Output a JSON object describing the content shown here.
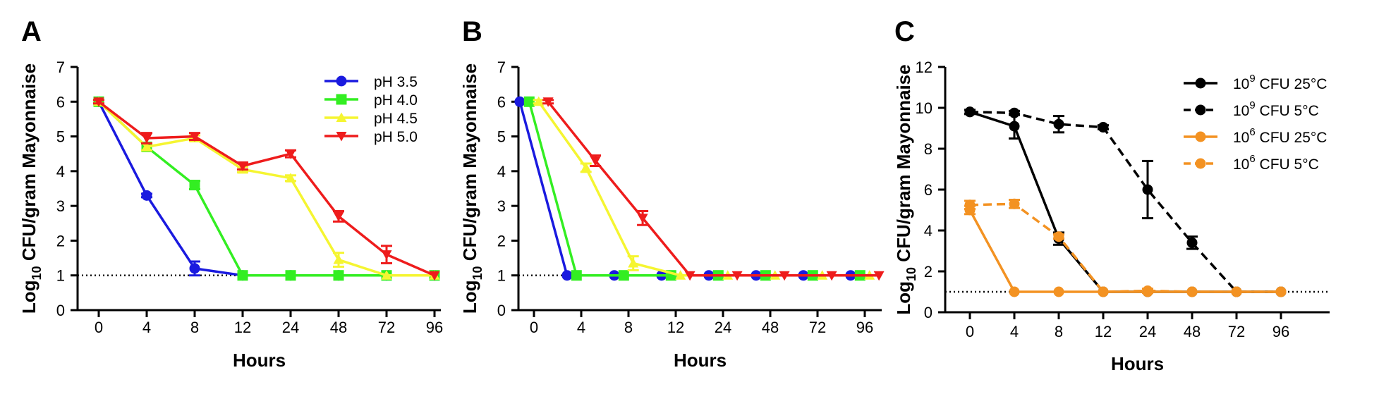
{
  "chart_data": [
    {
      "panel": "A",
      "type": "line",
      "title": "",
      "xlabel": "Hours",
      "ylabel_main": "CFU/gram Mayonnaise",
      "ylabel_prefix": "Log",
      "ylabel_sub": "10",
      "x": [
        "0",
        "4",
        "8",
        "12",
        "24",
        "48",
        "72",
        "96"
      ],
      "ylim": [
        0,
        7
      ],
      "yticks": [
        "0",
        "1",
        "2",
        "3",
        "4",
        "5",
        "6",
        "7"
      ],
      "detection_limit": 1,
      "legend_position": "top-right",
      "series": [
        {
          "name": "pH 3.5",
          "color": "#1a1adf",
          "marker": "circle",
          "dashed": false,
          "values": [
            6.0,
            3.3,
            1.2,
            1.0,
            1.0,
            1.0,
            1.0,
            1.0
          ],
          "errors": [
            0.05,
            0.05,
            0.2,
            0,
            0,
            0,
            0,
            0
          ]
        },
        {
          "name": "pH 4.0",
          "color": "#33ee22",
          "marker": "square",
          "dashed": false,
          "values": [
            6.0,
            4.7,
            3.6,
            1.0,
            1.0,
            1.0,
            1.0,
            1.0
          ],
          "errors": [
            0.05,
            0.1,
            0.12,
            0,
            0,
            0,
            0,
            0
          ]
        },
        {
          "name": "pH 4.5",
          "color": "#f5f531",
          "marker": "triangle",
          "dashed": false,
          "values": [
            6.0,
            4.7,
            4.95,
            4.05,
            3.8,
            1.45,
            1.0,
            1.0
          ],
          "errors": [
            0.05,
            0.1,
            0.08,
            0.08,
            0.08,
            0.2,
            0,
            0
          ]
        },
        {
          "name": "pH 5.0",
          "color": "#ee1c1c",
          "marker": "triangle-down",
          "dashed": false,
          "values": [
            6.0,
            4.95,
            5.0,
            4.15,
            4.5,
            2.7,
            1.6,
            1.0
          ],
          "errors": [
            0.05,
            0.15,
            0.1,
            0.1,
            0.1,
            0.15,
            0.25,
            0
          ]
        }
      ]
    },
    {
      "panel": "B",
      "type": "line",
      "title": "",
      "xlabel": "Hours",
      "ylabel_main": "CFU/gram Mayonnaise",
      "ylabel_prefix": "Log",
      "ylabel_sub": "10",
      "x": [
        "0",
        "4",
        "8",
        "12",
        "24",
        "48",
        "72",
        "96"
      ],
      "ylim": [
        0,
        7
      ],
      "yticks": [
        "0",
        "1",
        "2",
        "3",
        "4",
        "5",
        "6",
        "7"
      ],
      "detection_limit": 1,
      "series": [
        {
          "name": "pH 3.5",
          "color": "#1a1adf",
          "marker": "circle",
          "dashed": false,
          "offset": -0.3,
          "values": [
            6.0,
            1.0,
            1.0,
            1.0,
            1.0,
            1.0,
            1.0,
            1.0
          ],
          "errors": [
            0,
            0,
            0,
            0,
            0,
            0,
            0,
            0
          ]
        },
        {
          "name": "pH 4.0",
          "color": "#33ee22",
          "marker": "square",
          "dashed": false,
          "offset": -0.1,
          "values": [
            6.0,
            1.0,
            1.0,
            1.0,
            1.0,
            1.0,
            1.0,
            1.0
          ],
          "errors": [
            0,
            0,
            0,
            0,
            0,
            0,
            0,
            0
          ]
        },
        {
          "name": "pH 4.5",
          "color": "#f5f531",
          "marker": "triangle",
          "dashed": false,
          "offset": 0.1,
          "values": [
            6.0,
            4.1,
            1.35,
            1.0,
            1.0,
            1.0,
            1.0,
            1.0
          ],
          "errors": [
            0.05,
            0.12,
            0.2,
            0,
            0,
            0,
            0,
            0
          ]
        },
        {
          "name": "pH 5.0",
          "color": "#ee1c1c",
          "marker": "triangle-down",
          "dashed": false,
          "offset": 0.3,
          "values": [
            6.0,
            4.3,
            2.65,
            1.0,
            1.0,
            1.0,
            1.0,
            1.0
          ],
          "errors": [
            0.05,
            0.15,
            0.2,
            0,
            0,
            0,
            0,
            0
          ]
        }
      ]
    },
    {
      "panel": "C",
      "type": "line",
      "title": "",
      "xlabel": "Hours",
      "ylabel_main": "CFU/gram Mayonnaise",
      "ylabel_prefix": "Log",
      "ylabel_sub": "10",
      "x": [
        "0",
        "4",
        "8",
        "12",
        "24",
        "48",
        "72",
        "96"
      ],
      "ylim": [
        0,
        12
      ],
      "yticks": [
        "0",
        "2",
        "4",
        "6",
        "8",
        "10",
        "12"
      ],
      "detection_limit": 1,
      "legend_position": "top-right",
      "series": [
        {
          "name_base": "10",
          "name_sup": "9",
          "name_rest": " CFU 25°C",
          "color": "#000000",
          "marker": "circle",
          "dashed": false,
          "values": [
            9.8,
            9.1,
            3.6,
            1.0,
            1.0,
            1.0,
            1.0,
            1.0
          ],
          "errors": [
            0.1,
            0.6,
            0.3,
            0,
            0,
            0,
            0,
            0
          ]
        },
        {
          "name_base": "10",
          "name_sup": "9",
          "name_rest": " CFU 5°C",
          "color": "#000000",
          "marker": "circle",
          "dashed": true,
          "values": [
            9.8,
            9.75,
            9.2,
            9.05,
            6.0,
            3.4,
            1.0,
            1.0
          ],
          "errors": [
            0.1,
            0.1,
            0.4,
            0.1,
            1.4,
            0.3,
            0,
            0
          ]
        },
        {
          "name_base": "10",
          "name_sup": "6",
          "name_rest": " CFU 25°C",
          "color": "#f39222",
          "marker": "circle",
          "dashed": false,
          "values": [
            5.0,
            1.0,
            1.0,
            1.0,
            1.0,
            1.0,
            1.0,
            1.0
          ],
          "errors": [
            0.2,
            0,
            0,
            0,
            0,
            0,
            0,
            0
          ]
        },
        {
          "name_base": "10",
          "name_sup": "6",
          "name_rest": " CFU 5°C",
          "color": "#f39222",
          "marker": "circle",
          "dashed": true,
          "values": [
            5.25,
            5.3,
            3.7,
            1.0,
            1.05,
            1.0,
            1.0,
            1.0
          ],
          "errors": [
            0.2,
            0.2,
            0.1,
            0,
            0.1,
            0,
            0,
            0
          ]
        }
      ]
    }
  ]
}
